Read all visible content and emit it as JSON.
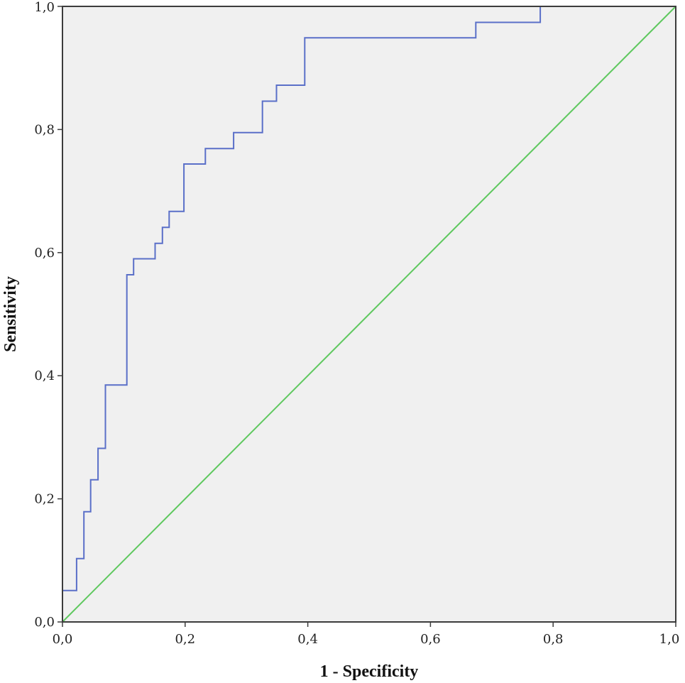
{
  "chart_data": {
    "type": "line",
    "title": "",
    "xlabel": "1 - Specificity",
    "ylabel": "Sensitivity",
    "xlim": [
      0,
      1
    ],
    "ylim": [
      0,
      1
    ],
    "x_ticks": [
      "0,0",
      "0,2",
      "0,4",
      "0,6",
      "0,8",
      "1,0"
    ],
    "y_ticks": [
      "0,0",
      "0,2",
      "0,4",
      "0,6",
      "0,8",
      "1,0"
    ],
    "grid": false,
    "legend": "none",
    "plot_background": "#f0f0f0",
    "series": [
      {
        "color": "#5a6fc8",
        "step": true,
        "points": [
          [
            0.0,
            0.0
          ],
          [
            0.0,
            0.051
          ],
          [
            0.023,
            0.051
          ],
          [
            0.023,
            0.103
          ],
          [
            0.035,
            0.103
          ],
          [
            0.035,
            0.179
          ],
          [
            0.046,
            0.179
          ],
          [
            0.046,
            0.231
          ],
          [
            0.058,
            0.231
          ],
          [
            0.058,
            0.282
          ],
          [
            0.07,
            0.282
          ],
          [
            0.07,
            0.385
          ],
          [
            0.105,
            0.385
          ],
          [
            0.105,
            0.564
          ],
          [
            0.116,
            0.564
          ],
          [
            0.116,
            0.59
          ],
          [
            0.151,
            0.59
          ],
          [
            0.151,
            0.615
          ],
          [
            0.163,
            0.615
          ],
          [
            0.163,
            0.641
          ],
          [
            0.174,
            0.641
          ],
          [
            0.174,
            0.667
          ],
          [
            0.198,
            0.667
          ],
          [
            0.198,
            0.744
          ],
          [
            0.233,
            0.744
          ],
          [
            0.233,
            0.769
          ],
          [
            0.279,
            0.769
          ],
          [
            0.279,
            0.795
          ],
          [
            0.326,
            0.795
          ],
          [
            0.326,
            0.846
          ],
          [
            0.349,
            0.846
          ],
          [
            0.349,
            0.872
          ],
          [
            0.395,
            0.872
          ],
          [
            0.395,
            0.949
          ],
          [
            0.674,
            0.949
          ],
          [
            0.674,
            0.974
          ],
          [
            0.779,
            0.974
          ],
          [
            0.779,
            1.0
          ],
          [
            1.0,
            1.0
          ]
        ]
      },
      {
        "color": "#5ec85e",
        "points": [
          [
            0,
            0
          ],
          [
            1,
            1
          ]
        ]
      }
    ]
  }
}
